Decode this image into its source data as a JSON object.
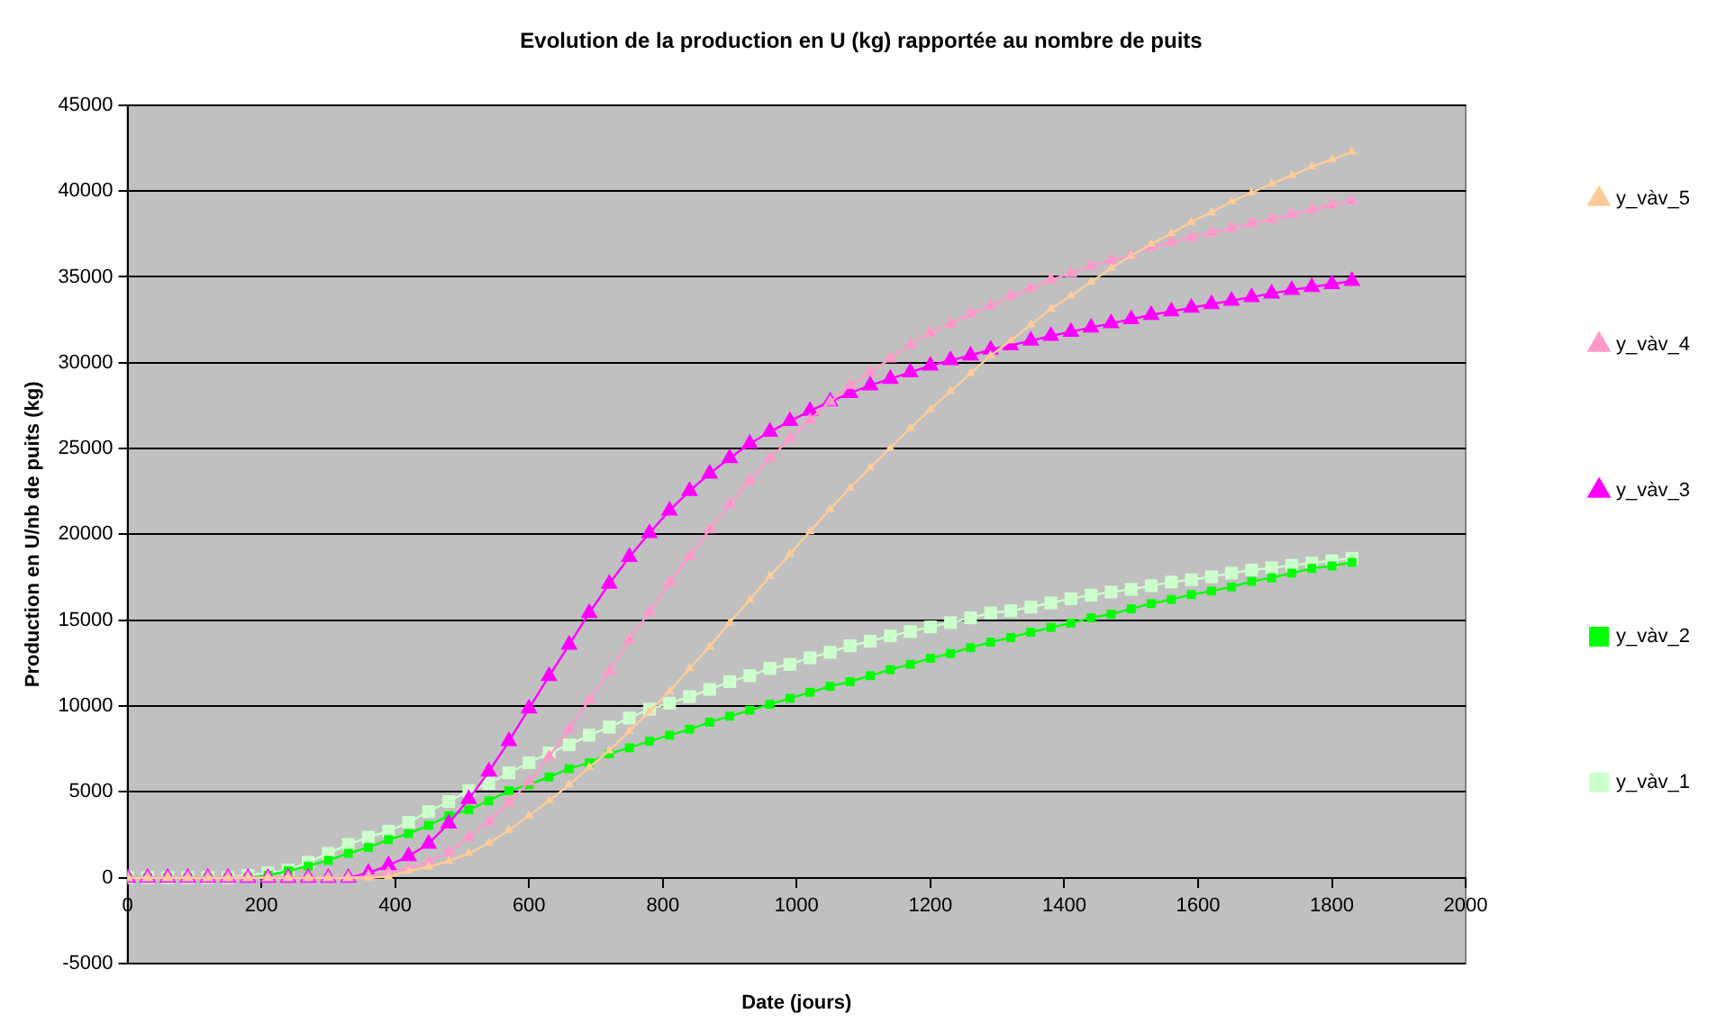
{
  "chart_data": {
    "type": "line",
    "title": "Evolution de la production en U (kg) rapportée au nombre de puits",
    "xlabel": "Date (jours)",
    "ylabel": "Production en U/nb de puits (kg)",
    "x": [
      0,
      30,
      60,
      90,
      120,
      150,
      180,
      210,
      240,
      270,
      300,
      330,
      360,
      390,
      420,
      450,
      480,
      510,
      540,
      570,
      600,
      630,
      660,
      690,
      720,
      750,
      780,
      810,
      840,
      870,
      900,
      930,
      960,
      990,
      1020,
      1050,
      1080,
      1110,
      1140,
      1170,
      1200,
      1230,
      1260,
      1290,
      1320,
      1350,
      1380,
      1410,
      1440,
      1470,
      1500,
      1530,
      1560,
      1590,
      1620,
      1650,
      1680,
      1710,
      1740,
      1770,
      1800,
      1830
    ],
    "series": [
      {
        "name": "y_vàv_1",
        "color": "#ccffcc",
        "marker": "square",
        "values": [
          0,
          0,
          0,
          0,
          0,
          0,
          140,
          280,
          450,
          900,
          1420,
          1940,
          2360,
          2710,
          3230,
          3850,
          4440,
          5070,
          5490,
          6110,
          6700,
          7260,
          7740,
          8300,
          8780,
          9300,
          9820,
          10170,
          10550,
          10970,
          11420,
          11770,
          12190,
          12430,
          12810,
          13130,
          13510,
          13780,
          14090,
          14340,
          14610,
          14860,
          15140,
          15420,
          15550,
          15760,
          16010,
          16250,
          16460,
          16640,
          16800,
          17010,
          17220,
          17360,
          17530,
          17740,
          17920,
          18050,
          18200,
          18330,
          18470,
          18610
        ]
      },
      {
        "name": "y_vàv_2",
        "color": "#00ff00",
        "marker": "square",
        "values": [
          0,
          0,
          0,
          0,
          0,
          0,
          0,
          140,
          400,
          680,
          1010,
          1420,
          1770,
          2220,
          2570,
          3050,
          3610,
          3960,
          4480,
          5070,
          5420,
          5870,
          6350,
          6700,
          7220,
          7570,
          7950,
          8300,
          8650,
          9060,
          9410,
          9760,
          10100,
          10450,
          10800,
          11150,
          11420,
          11770,
          12120,
          12430,
          12780,
          13060,
          13400,
          13720,
          13990,
          14300,
          14580,
          14830,
          15140,
          15350,
          15660,
          15970,
          16210,
          16490,
          16700,
          16940,
          17260,
          17470,
          17740,
          18020,
          18160,
          18370
        ]
      },
      {
        "name": "y_vàv_3",
        "color": "#ff00ff",
        "marker": "triangle",
        "values": [
          0,
          0,
          0,
          0,
          0,
          0,
          0,
          0,
          0,
          0,
          0,
          0,
          280,
          730,
          1250,
          1980,
          3160,
          4580,
          6180,
          7950,
          9860,
          11740,
          13570,
          15420,
          17120,
          18680,
          20070,
          21390,
          22530,
          23540,
          24440,
          25280,
          25970,
          26600,
          27190,
          27740,
          28230,
          28680,
          29060,
          29440,
          29830,
          30140,
          30420,
          30760,
          31010,
          31280,
          31560,
          31800,
          32050,
          32290,
          32530,
          32780,
          32990,
          33200,
          33410,
          33610,
          33820,
          34030,
          34240,
          34410,
          34580,
          34760
        ]
      },
      {
        "name": "y_vàv_4",
        "color": "#ff99cc",
        "marker": "triangle",
        "values": [
          0,
          0,
          0,
          0,
          0,
          0,
          0,
          0,
          0,
          0,
          0,
          0,
          80,
          280,
          550,
          900,
          1490,
          2360,
          3260,
          4380,
          5590,
          7050,
          8650,
          10340,
          12010,
          13850,
          15490,
          17190,
          18720,
          20280,
          21740,
          23130,
          24440,
          25560,
          26670,
          27710,
          28680,
          29440,
          30240,
          31040,
          31740,
          32260,
          32850,
          33330,
          33890,
          34340,
          34830,
          35210,
          35630,
          35970,
          36250,
          36740,
          37010,
          37290,
          37570,
          37850,
          38130,
          38370,
          38650,
          38920,
          39200,
          39410
        ]
      },
      {
        "name": "y_vàv_5",
        "color": "#ffcc99",
        "marker": "triangle",
        "values": [
          0,
          0,
          0,
          0,
          0,
          0,
          0,
          0,
          0,
          0,
          0,
          0,
          0,
          60,
          390,
          630,
          970,
          1420,
          2010,
          2780,
          3610,
          4480,
          5420,
          6430,
          7400,
          8540,
          9690,
          10860,
          12190,
          13470,
          14860,
          16180,
          17570,
          18850,
          20170,
          21460,
          22710,
          23890,
          25030,
          26180,
          27290,
          28330,
          29380,
          30420,
          31290,
          32220,
          33130,
          33890,
          34690,
          35520,
          36220,
          36910,
          37530,
          38200,
          38750,
          39380,
          39900,
          40420,
          40910,
          41420,
          41830,
          42270
        ]
      }
    ],
    "xlim": [
      0,
      2000
    ],
    "xticks": [
      0,
      200,
      400,
      600,
      800,
      1000,
      1200,
      1400,
      1600,
      1800,
      2000
    ],
    "ylim": [
      -5000,
      45000
    ],
    "yticks": [
      -5000,
      0,
      5000,
      10000,
      15000,
      20000,
      25000,
      30000,
      35000,
      40000,
      45000
    ],
    "grid": "y",
    "legend": "right",
    "line_style": "solid"
  }
}
